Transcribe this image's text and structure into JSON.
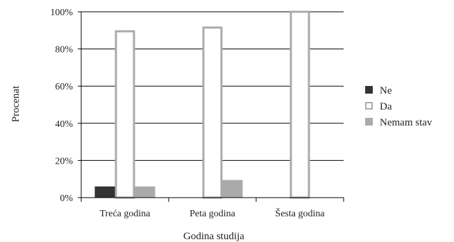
{
  "chart_data": {
    "type": "bar",
    "title": "",
    "xlabel": "Godina studija",
    "ylabel": "Procenat",
    "ylim": [
      0,
      100
    ],
    "y_ticks": [
      "0%",
      "20%",
      "40%",
      "60%",
      "80%",
      "100%"
    ],
    "categories": [
      "Treća godina",
      "Peta godina",
      "Šesta godina"
    ],
    "series": [
      {
        "name": "Ne",
        "values": [
          6,
          0,
          0
        ],
        "color": "#333333",
        "style": "filled"
      },
      {
        "name": "Da",
        "values": [
          89.5,
          91.5,
          100
        ],
        "color": "#aaaaaa",
        "style": "outline"
      },
      {
        "name": "Nemam stav",
        "values": [
          6,
          9.5,
          0
        ],
        "color": "#aaaaaa",
        "style": "filled"
      }
    ],
    "grid": true,
    "legend_position": "right"
  }
}
